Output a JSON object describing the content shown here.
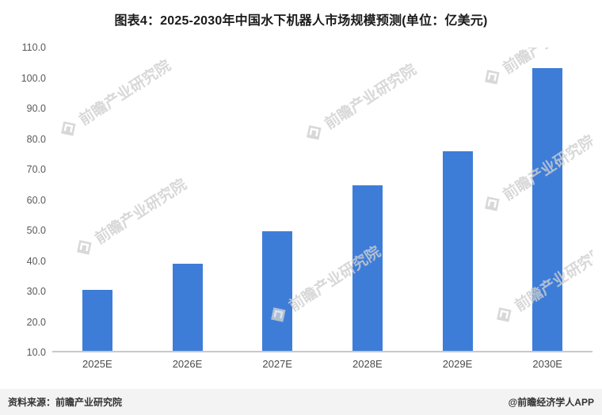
{
  "title": "图表4：2025-2030年中国水下机器人市场规模预测(单位：亿美元)",
  "watermark": {
    "text": "前瞻产业研究院"
  },
  "footer": {
    "source": "资料来源：前瞻产业研究院",
    "credit": "@前瞻经济学人APP"
  },
  "chart_data": {
    "type": "bar",
    "title": "图表4：2025-2030年中国水下机器人市场规模预测(单位：亿美元)",
    "unit": "亿美元",
    "categories": [
      "2025E",
      "2026E",
      "2027E",
      "2028E",
      "2029E",
      "2030E"
    ],
    "values": [
      30.0,
      38.8,
      49.5,
      64.5,
      75.8,
      103.2
    ],
    "xlabel": "",
    "ylabel": "",
    "ylim": [
      10.0,
      110.0
    ],
    "ytick_step": 10.0,
    "grid": false,
    "legend": false,
    "bar_color": "#3D7DD8",
    "axis_label_color": "#595959"
  }
}
